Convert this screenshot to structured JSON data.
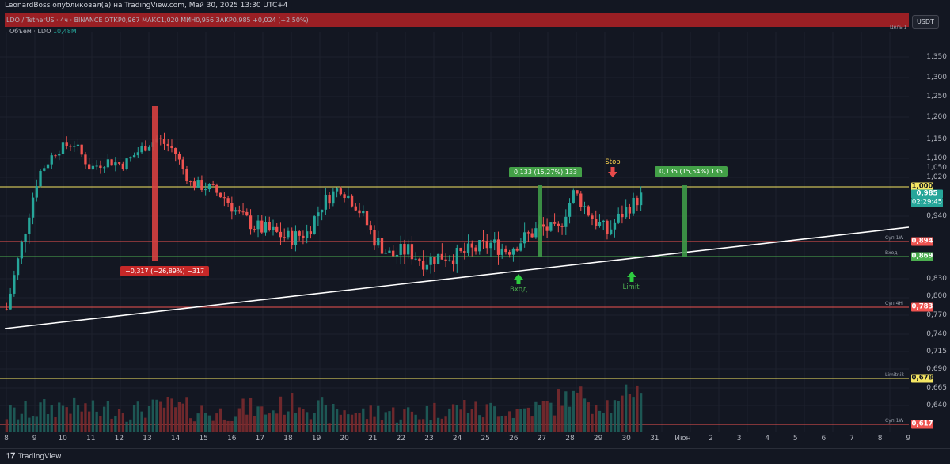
{
  "header": {
    "author_line": "LeonardBoss опубликовал(а) на TradingView.com, Май 30, 2025 13:30 UTC+4",
    "symbol_line": "LDO / TetherUS · 4ч · BINANCE  ОТКР0,967  МАКС1,020  МИН0,956  ЗАКР0,985  +0,024 (+2,50%)",
    "volume_label": "Объем · LDO",
    "volume_value": "10,48M"
  },
  "price_scale": {
    "currency": "USDT",
    "ticks": [
      "1,350",
      "1,300",
      "1,250",
      "1,200",
      "1,150",
      "1,100",
      "1,050",
      "1,020",
      "0,940",
      "0,830",
      "0,800",
      "0,770",
      "0,740",
      "0,715",
      "0,690",
      "0,665",
      "0,640",
      "0,590"
    ],
    "top_label": "Цель 1"
  },
  "levels": [
    {
      "id": "yellow-top",
      "price": "1,000",
      "name": "",
      "color": "#f5e663",
      "label_bg": "#f5e663",
      "label_fg": "#131722"
    },
    {
      "id": "resistance",
      "price": "0,894",
      "name": "Суп 1W",
      "color": "#ef5350",
      "label_bg": "#ef5350",
      "label_fg": "#ffffff"
    },
    {
      "id": "entry",
      "price": "0,869",
      "name": "Вход",
      "color": "#4caf50",
      "label_bg": "#4caf50",
      "label_fg": "#ffffff"
    },
    {
      "id": "sup4h",
      "price": "0,783",
      "name": "Суп 4Н",
      "color": "#ef5350",
      "label_bg": "#ef5350",
      "label_fg": "#ffffff"
    },
    {
      "id": "limitnik",
      "price": "0,678",
      "name": "Limitnik",
      "color": "#f5e663",
      "label_bg": "#f5e663",
      "label_fg": "#131722"
    },
    {
      "id": "sup1w-low",
      "price": "0,617",
      "name": "Суп 1W",
      "color": "#ef5350",
      "label_bg": "#ef5350",
      "label_fg": "#ffffff"
    }
  ],
  "current_price": {
    "price": "0,985",
    "countdown": "02:29:45",
    "color": "#26a69a"
  },
  "annotations": {
    "measure_left": "−0,317 (−26,89%) −317",
    "measure_mid": "0,133 (15,27%) 133",
    "measure_right": "0,135 (15,54%) 135",
    "stop": "Stop",
    "entry": "Вход",
    "limit": "Limit"
  },
  "time_axis": [
    "8",
    "9",
    "10",
    "11",
    "12",
    "13",
    "14",
    "15",
    "16",
    "17",
    "18",
    "19",
    "20",
    "21",
    "22",
    "23",
    "24",
    "25",
    "26",
    "27",
    "28",
    "29",
    "30",
    "31",
    "Июн",
    "2",
    "3",
    "4",
    "5",
    "6",
    "7",
    "8",
    "9"
  ],
  "footer": {
    "brand": "TradingView"
  },
  "colors": {
    "up": "#26a69a",
    "down": "#ef5350",
    "bg": "#131722",
    "grid": "#1e222d",
    "trend": "#ffffff"
  },
  "chart_data": {
    "type": "candlestick",
    "pair": "LDO / TetherUS",
    "interval": "4ч",
    "ylim": [
      0.59,
      1.37
    ],
    "x": [
      "8",
      "9",
      "10",
      "11",
      "12",
      "13",
      "14",
      "15",
      "16",
      "17",
      "18",
      "19",
      "20",
      "21",
      "22",
      "23",
      "24",
      "25",
      "26",
      "27",
      "28",
      "29",
      "30"
    ],
    "close_path": [
      0.78,
      0.9,
      1.04,
      1.1,
      1.12,
      1.05,
      1.07,
      1.06,
      1.1,
      1.13,
      1.1,
      1.01,
      1.0,
      0.98,
      0.94,
      0.92,
      0.91,
      0.9,
      0.91,
      0.97,
      1.0,
      0.96,
      0.9,
      0.87,
      0.88,
      0.86,
      0.87,
      0.87,
      0.88,
      0.89,
      0.88,
      0.9,
      0.92,
      0.91,
      0.99,
      0.94,
      0.91,
      0.95,
      0.98
    ],
    "volume_path": [
      0.3,
      0.4,
      0.5,
      0.6,
      0.5,
      0.4,
      0.5,
      0.4,
      0.5,
      0.6,
      0.5,
      0.4,
      0.3,
      0.4,
      0.5,
      0.4,
      0.6,
      0.7,
      0.5,
      0.3,
      0.4,
      0.3,
      0.4,
      0.3,
      0.3,
      0.4,
      0.5,
      0.6,
      0.4,
      0.5,
      0.4,
      0.5,
      0.6,
      0.9,
      1.0,
      0.7,
      0.6,
      1.2,
      1.4
    ]
  }
}
